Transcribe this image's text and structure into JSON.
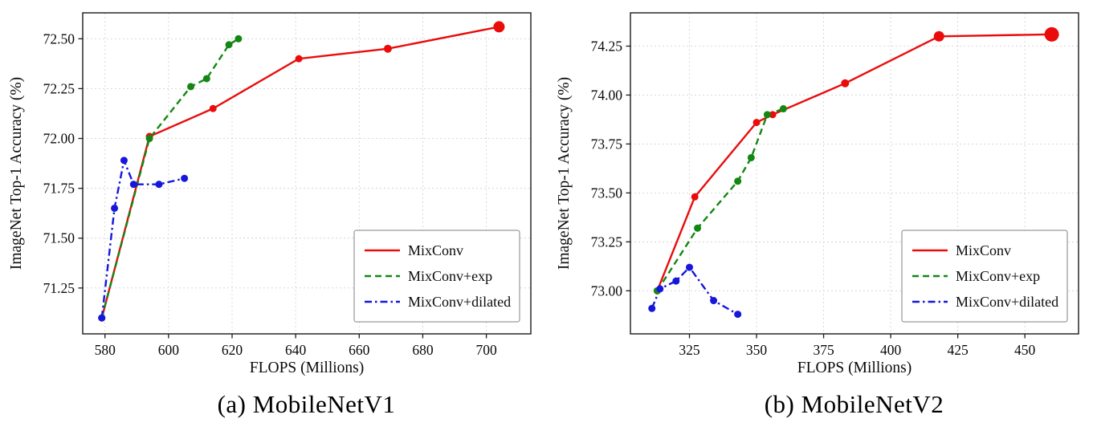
{
  "page": {
    "background": "#ffffff",
    "text_color": "#000000"
  },
  "legend": {
    "position": "lower right",
    "entries": [
      "MixConv",
      "MixConv+exp",
      "MixConv+dilated"
    ]
  },
  "colors": {
    "mixconv": "#ea0b0b",
    "mixconv_exp": "#128712",
    "mixconv_dilated": "#1616dd",
    "grid": "#d4d4d4",
    "frame": "#1a1a1a"
  },
  "chart_data": [
    {
      "type": "line",
      "title": "(a) MobileNetV1",
      "xlabel": "FLOPS (Millions)",
      "ylabel": "ImageNet Top-1 Accuracy (%)",
      "xlim": [
        573,
        714
      ],
      "ylim": [
        71.02,
        72.63
      ],
      "xticks": [
        580,
        600,
        620,
        640,
        660,
        680,
        700
      ],
      "xtick_labels": [
        "580",
        "600",
        "620",
        "640",
        "660",
        "680",
        "700"
      ],
      "yticks": [
        71.25,
        71.5,
        71.75,
        72.0,
        72.25,
        72.5
      ],
      "ytick_labels": [
        "71.25",
        "71.50",
        "71.75",
        "72.00",
        "72.25",
        "72.50"
      ],
      "grid": true,
      "legend_position": "lower right",
      "series": [
        {
          "name": "MixConv",
          "color": "#ea0b0b",
          "line_style": "solid",
          "x": [
            579,
            594,
            614,
            641,
            669,
            704
          ],
          "y": [
            71.1,
            72.01,
            72.15,
            72.4,
            72.45,
            72.56
          ],
          "marker_sizes": [
            4.5,
            4.5,
            4.5,
            4.5,
            5,
            7
          ]
        },
        {
          "name": "MixConv+exp",
          "color": "#128712",
          "line_style": "dashed",
          "x": [
            579,
            594,
            607,
            612,
            619,
            622
          ],
          "y": [
            71.1,
            72.0,
            72.26,
            72.3,
            72.47,
            72.5
          ],
          "marker_sizes": [
            4.5,
            4.5,
            4.5,
            4.5,
            4.5,
            4.5
          ]
        },
        {
          "name": "MixConv+dilated",
          "color": "#1616dd",
          "line_style": "dashdot",
          "x": [
            579,
            583,
            586,
            589,
            597,
            605
          ],
          "y": [
            71.1,
            71.65,
            71.89,
            71.77,
            71.77,
            71.8
          ],
          "marker_sizes": [
            4.5,
            4.5,
            4.5,
            4.5,
            4.5,
            4.5
          ]
        }
      ]
    },
    {
      "type": "line",
      "title": "(b) MobileNetV2",
      "xlabel": "FLOPS (Millions)",
      "ylabel": "ImageNet Top-1 Accuracy (%)",
      "xlim": [
        303,
        470
      ],
      "ylim": [
        72.78,
        74.42
      ],
      "xticks": [
        325,
        350,
        375,
        400,
        425,
        450
      ],
      "xtick_labels": [
        "325",
        "350",
        "375",
        "400",
        "425",
        "450"
      ],
      "yticks": [
        73.0,
        73.25,
        73.5,
        73.75,
        74.0,
        74.25
      ],
      "ytick_labels": [
        "73.00",
        "73.25",
        "73.50",
        "73.75",
        "74.00",
        "74.25"
      ],
      "grid": true,
      "legend_position": "lower right",
      "series": [
        {
          "name": "MixConv",
          "color": "#ea0b0b",
          "line_style": "solid",
          "x": [
            313,
            327,
            350,
            356,
            383,
            418,
            460
          ],
          "y": [
            73.0,
            73.48,
            73.86,
            73.9,
            74.06,
            74.3,
            74.31
          ],
          "marker_sizes": [
            4.5,
            4.5,
            4.5,
            4.5,
            5,
            6.5,
            9
          ]
        },
        {
          "name": "MixConv+exp",
          "color": "#128712",
          "line_style": "dashed",
          "x": [
            313,
            328,
            343,
            348,
            354,
            360
          ],
          "y": [
            73.0,
            73.32,
            73.56,
            73.68,
            73.9,
            73.93
          ],
          "marker_sizes": [
            4.5,
            4.5,
            4.5,
            4.5,
            4.5,
            4.5
          ]
        },
        {
          "name": "MixConv+dilated",
          "color": "#1616dd",
          "line_style": "dashdot",
          "x": [
            311,
            314,
            320,
            325,
            334,
            343
          ],
          "y": [
            72.91,
            73.01,
            73.05,
            73.12,
            72.95,
            72.88
          ],
          "marker_sizes": [
            4.5,
            4.5,
            4.5,
            4.5,
            4.5,
            4.5
          ]
        }
      ]
    }
  ]
}
